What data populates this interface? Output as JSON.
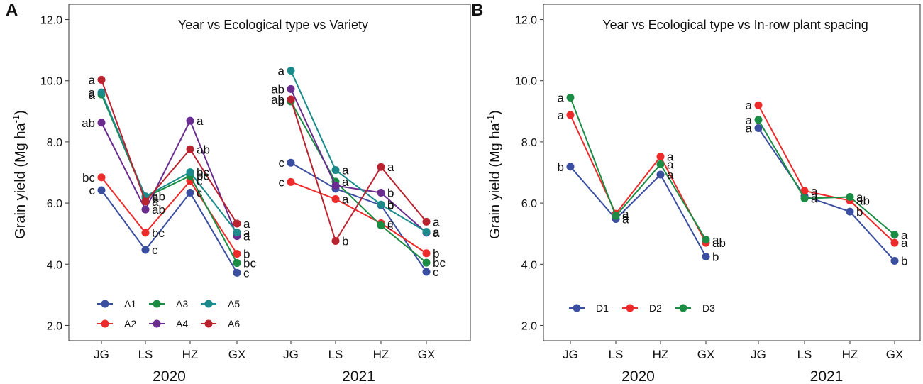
{
  "panel_labels": [
    "A",
    "B"
  ],
  "chart_data": [
    {
      "type": "line",
      "title": "Year vs Ecological type vs Variety",
      "ylabel": "Grain yield",
      "ylabel_unit": "Mg ha",
      "ylabel_unit_sup": "-1",
      "ylim": [
        1.5,
        12.5
      ],
      "yticks": [
        2.0,
        4.0,
        6.0,
        8.0,
        10.0,
        12.0
      ],
      "ytick_labels": [
        "2.0",
        "4.0",
        "6.0",
        "8.0",
        "10.0",
        "12.0"
      ],
      "categories": [
        "JG",
        "LS",
        "HZ",
        "GX"
      ],
      "years": [
        "2020",
        "2021"
      ],
      "legend_position": "bottom-left",
      "series": [
        {
          "name": "A1",
          "color": "#3b4fa0",
          "values": [
            [
              6.42,
              4.47,
              6.34,
              3.72
            ],
            [
              7.32,
              6.47,
              5.93,
              3.75
            ]
          ],
          "labels": [
            [
              "c",
              "c",
              "c",
              "c"
            ],
            [
              "c",
              "",
              "b",
              "c"
            ]
          ]
        },
        {
          "name": "A2",
          "color": "#ee2b2b",
          "values": [
            [
              6.84,
              5.03,
              6.72,
              4.34
            ],
            [
              6.69,
              6.13,
              5.34,
              4.36
            ]
          ],
          "labels": [
            [
              "bc",
              "bc",
              "c",
              "b"
            ],
            [
              "c",
              "a",
              "c",
              "b"
            ]
          ]
        },
        {
          "name": "A3",
          "color": "#1a8c44",
          "values": [
            [
              9.55,
              6.19,
              6.89,
              4.04
            ],
            [
              9.32,
              6.7,
              5.27,
              4.05
            ]
          ],
          "labels": [
            [
              "a",
              "a",
              "bc",
              "bc"
            ],
            [
              "b",
              "a",
              "c",
              "bc"
            ]
          ]
        },
        {
          "name": "A4",
          "color": "#6a2c8e",
          "values": [
            [
              8.63,
              5.79,
              8.69,
              4.92
            ],
            [
              9.73,
              6.57,
              6.34,
              5.03
            ]
          ],
          "labels": [
            [
              "ab",
              "ab",
              "a",
              "a"
            ],
            [
              "ab",
              "",
              "b",
              "a"
            ]
          ]
        },
        {
          "name": "A5",
          "color": "#1a8a8a",
          "values": [
            [
              9.62,
              6.22,
              7.01,
              5.04
            ],
            [
              10.33,
              7.08,
              5.95,
              5.06
            ]
          ],
          "labels": [
            [
              "a",
              "ab",
              "bc",
              "a"
            ],
            [
              "a",
              "a",
              "b",
              "a"
            ]
          ]
        },
        {
          "name": "A6",
          "color": "#b8232f",
          "values": [
            [
              10.03,
              6.05,
              7.76,
              5.33
            ],
            [
              9.39,
              4.76,
              7.18,
              5.39
            ]
          ],
          "labels": [
            [
              "a",
              "a",
              "ab",
              "a"
            ],
            [
              "ab",
              "b",
              "a",
              "a"
            ]
          ]
        }
      ]
    },
    {
      "type": "line",
      "title": "Year vs Ecological type vs In-row plant spacing",
      "ylabel": "Grain yield",
      "ylabel_unit": "Mg ha",
      "ylabel_unit_sup": "-1",
      "ylim": [
        1.5,
        12.5
      ],
      "yticks": [
        2.0,
        4.0,
        6.0,
        8.0,
        10.0,
        12.0
      ],
      "ytick_labels": [
        "2.0",
        "4.0",
        "6.0",
        "8.0",
        "10.0",
        "12.0"
      ],
      "categories": [
        "JG",
        "LS",
        "HZ",
        "GX"
      ],
      "years": [
        "2020",
        "2021"
      ],
      "legend_position": "bottom-left",
      "series": [
        {
          "name": "D1",
          "color": "#3b4fa0",
          "values": [
            [
              7.19,
              5.48,
              6.93,
              4.25
            ],
            [
              8.45,
              6.23,
              5.72,
              4.11
            ]
          ],
          "labels": [
            [
              "b",
              "a",
              "a",
              "b"
            ],
            [
              "a",
              "a",
              "b",
              "b"
            ]
          ]
        },
        {
          "name": "D2",
          "color": "#ee2b2b",
          "values": [
            [
              8.88,
              5.65,
              7.52,
              4.7
            ],
            [
              9.2,
              6.4,
              6.08,
              4.7
            ]
          ],
          "labels": [
            [
              "a",
              "a",
              "a",
              "ab"
            ],
            [
              "a",
              "a",
              "ab",
              "a"
            ]
          ]
        },
        {
          "name": "D3",
          "color": "#1a8c44",
          "values": [
            [
              9.45,
              5.58,
              7.27,
              4.8
            ],
            [
              8.72,
              6.15,
              6.2,
              4.96
            ]
          ],
          "labels": [
            [
              "a",
              "a",
              "a",
              "a"
            ],
            [
              "a",
              "a",
              "a",
              "a"
            ]
          ]
        }
      ]
    }
  ]
}
